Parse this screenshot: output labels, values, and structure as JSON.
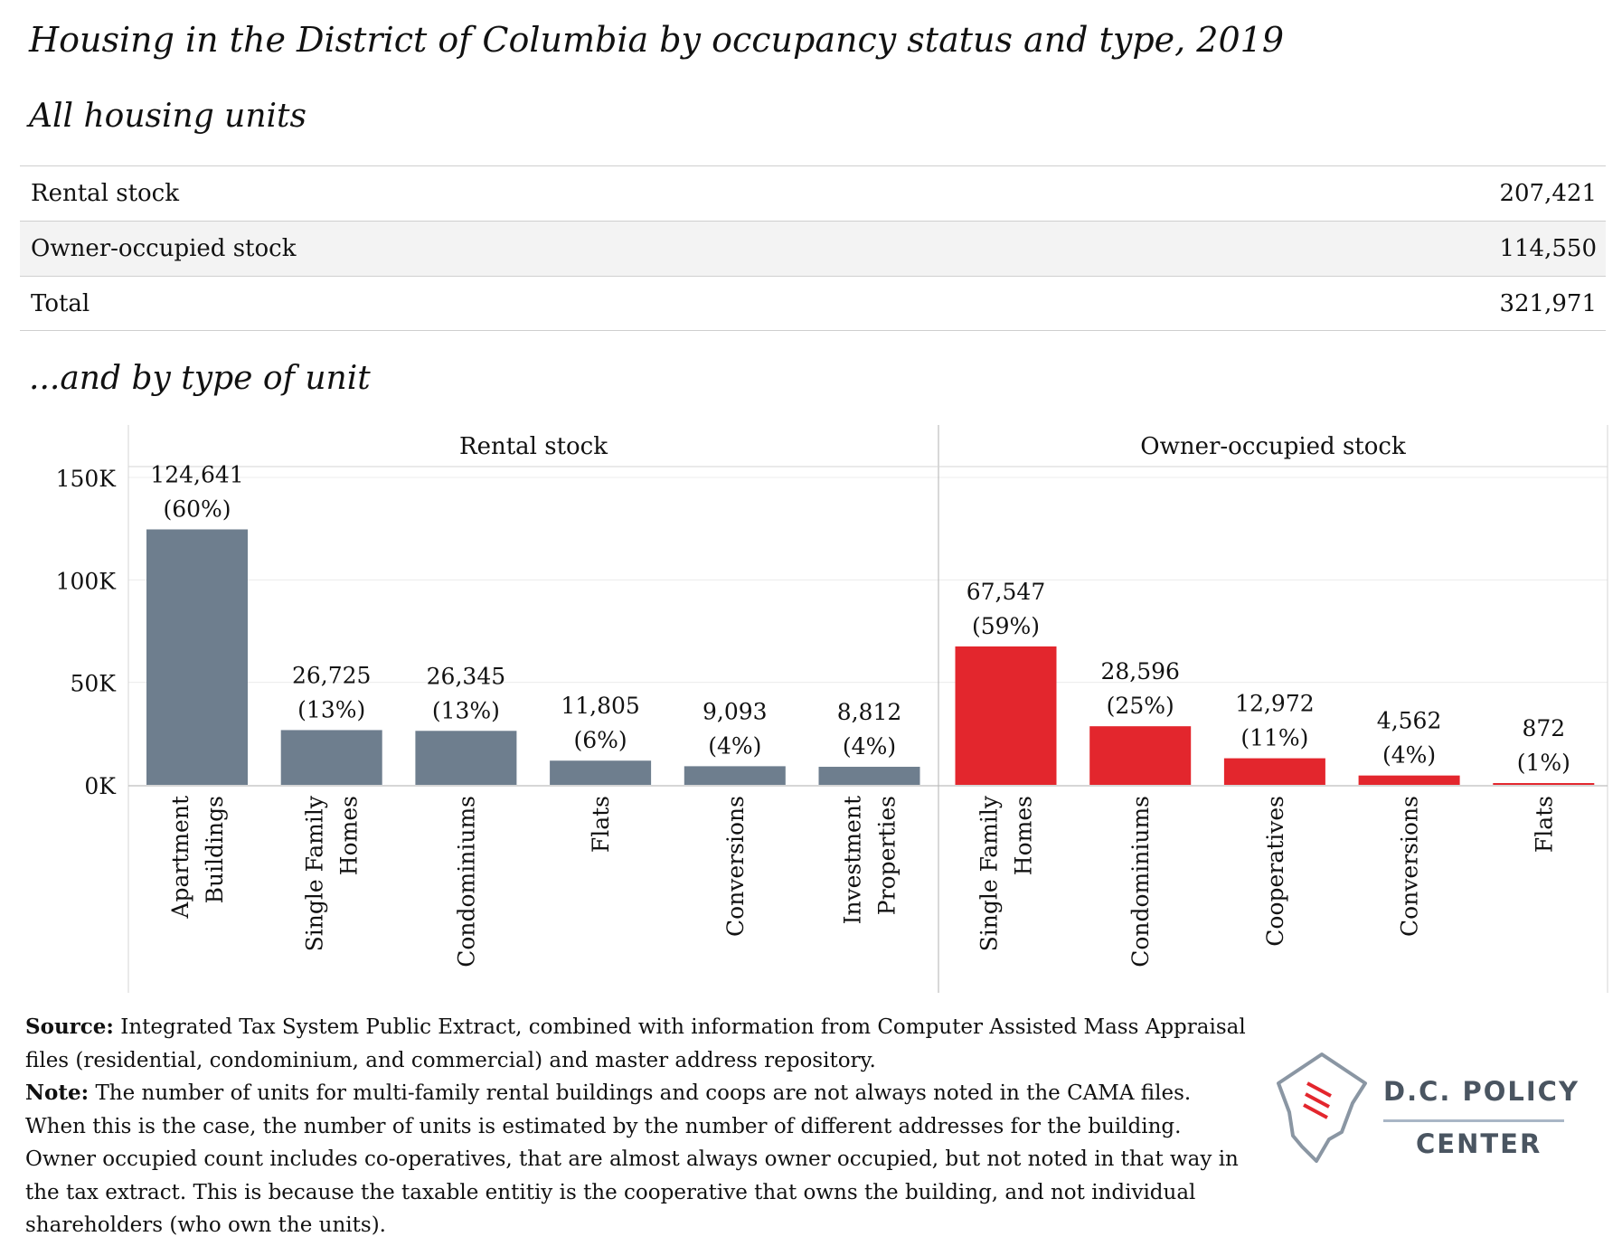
{
  "title": "Housing in the District of Columbia by occupancy status and type, 2019",
  "summary_heading": "All housing units",
  "summary_rows": [
    {
      "label": "Rental stock",
      "value": "207,421"
    },
    {
      "label": "Owner-occupied stock",
      "value": "114,550"
    },
    {
      "label": "Total",
      "value": "321,971"
    }
  ],
  "chart_heading": "...and by type of unit",
  "chart_data": {
    "type": "bar",
    "title": "",
    "xlabel": "",
    "ylabel": "",
    "ylim": [
      0,
      150000
    ],
    "yticks": [
      {
        "value": 0,
        "label": "0K"
      },
      {
        "value": 50000,
        "label": "50K"
      },
      {
        "value": 100000,
        "label": "100K"
      },
      {
        "value": 150000,
        "label": "150K"
      }
    ],
    "grid": true,
    "panels": [
      {
        "name": "Rental stock",
        "color": "#6e7e8e",
        "categories": [
          {
            "lines": [
              "Apartment",
              "Buildings"
            ],
            "value": 124641,
            "value_label": "124,641",
            "pct_label": "(60%)"
          },
          {
            "lines": [
              "Single Family",
              "Homes"
            ],
            "value": 26725,
            "value_label": "26,725",
            "pct_label": "(13%)"
          },
          {
            "lines": [
              "Condominiums"
            ],
            "value": 26345,
            "value_label": "26,345",
            "pct_label": "(13%)"
          },
          {
            "lines": [
              "Flats"
            ],
            "value": 11805,
            "value_label": "11,805",
            "pct_label": "(6%)"
          },
          {
            "lines": [
              "Conversions"
            ],
            "value": 9093,
            "value_label": "9,093",
            "pct_label": "(4%)"
          },
          {
            "lines": [
              "Investment",
              "Properties"
            ],
            "value": 8812,
            "value_label": "8,812",
            "pct_label": "(4%)"
          }
        ]
      },
      {
        "name": "Owner-occupied stock",
        "color": "#e3262d",
        "categories": [
          {
            "lines": [
              "Single Family",
              "Homes"
            ],
            "value": 67547,
            "value_label": "67,547",
            "pct_label": "(59%)"
          },
          {
            "lines": [
              "Condominiums"
            ],
            "value": 28596,
            "value_label": "28,596",
            "pct_label": "(25%)"
          },
          {
            "lines": [
              "Cooperatives"
            ],
            "value": 12972,
            "value_label": "12,972",
            "pct_label": "(11%)"
          },
          {
            "lines": [
              "Conversions"
            ],
            "value": 4562,
            "value_label": "4,562",
            "pct_label": "(4%)"
          },
          {
            "lines": [
              "Flats"
            ],
            "value": 872,
            "value_label": "872",
            "pct_label": "(1%)"
          }
        ]
      }
    ]
  },
  "footnote": {
    "source_label": "Source:",
    "source_text": "Integrated Tax System Public Extract, combined with information from Computer Assisted Mass Appraisal files (residential, condominium, and commercial) and master address repository.",
    "note_label": "Note:",
    "note_text": "The number of units for multi-family rental buildings and coops are not always noted in the CAMA files. When this is the case, the number of units is estimated by the number of different addresses for the building. Owner occupied count includes co-operatives, that are almost always owner occupied, but not noted in that way in the tax extract. This is because the taxable entitiy is the cooperative that owns the building, and not individual shareholders (who own the units)."
  },
  "logo": {
    "line1": "D.C. POLICY",
    "line2": "CENTER",
    "colors": {
      "text": "#4a5561",
      "accent": "#e3262d",
      "outline": "#8a96a3"
    }
  }
}
